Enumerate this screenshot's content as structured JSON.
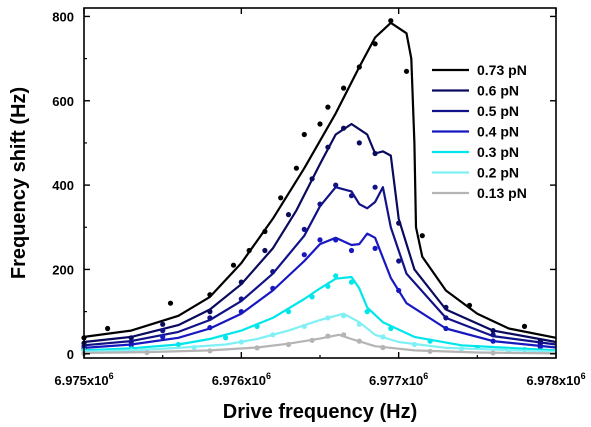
{
  "chart_data": {
    "type": "line",
    "title": "",
    "xlabel": "Drive frequency (Hz)",
    "ylabel": "Frequency shift (Hz)",
    "xlim": [
      6975000,
      6978000
    ],
    "ylim": [
      -10,
      820
    ],
    "x_ticks": [
      {
        "value": 6975000,
        "mantissa": "6.975x10",
        "exp": "6"
      },
      {
        "value": 6976000,
        "mantissa": "6.976x10",
        "exp": "6"
      },
      {
        "value": 6977000,
        "mantissa": "6.977x10",
        "exp": "6"
      },
      {
        "value": 6978000,
        "mantissa": "6.978x10",
        "exp": "6"
      }
    ],
    "y_ticks": [
      {
        "value": 0,
        "label": "0"
      },
      {
        "value": 200,
        "label": "200"
      },
      {
        "value": 400,
        "label": "400"
      },
      {
        "value": 600,
        "label": "600"
      },
      {
        "value": 800,
        "label": "800"
      }
    ],
    "legend_position": "top-right",
    "grid": false,
    "series": [
      {
        "name": "0.73 pN",
        "color": "#000000",
        "curve": [
          [
            6975000,
            40
          ],
          [
            6975300,
            55
          ],
          [
            6975600,
            90
          ],
          [
            6975800,
            135
          ],
          [
            6976000,
            215
          ],
          [
            6976200,
            320
          ],
          [
            6976400,
            440
          ],
          [
            6976600,
            570
          ],
          [
            6976750,
            680
          ],
          [
            6976850,
            750
          ],
          [
            6976950,
            785
          ],
          [
            6977050,
            760
          ],
          [
            6977080,
            700
          ],
          [
            6977100,
            500
          ],
          [
            6977110,
            300
          ],
          [
            6977150,
            230
          ],
          [
            6977300,
            150
          ],
          [
            6977500,
            95
          ],
          [
            6977700,
            60
          ],
          [
            6978000,
            38
          ]
        ],
        "points": [
          [
            6975000,
            38
          ],
          [
            6975150,
            60
          ],
          [
            6975550,
            120
          ],
          [
            6975800,
            140
          ],
          [
            6975950,
            210
          ],
          [
            6976050,
            245
          ],
          [
            6976150,
            290
          ],
          [
            6976250,
            370
          ],
          [
            6976350,
            440
          ],
          [
            6976400,
            520
          ],
          [
            6976500,
            545
          ],
          [
            6976550,
            585
          ],
          [
            6976650,
            630
          ],
          [
            6976750,
            680
          ],
          [
            6976850,
            735
          ],
          [
            6976950,
            790
          ],
          [
            6977050,
            670
          ],
          [
            6977150,
            280
          ],
          [
            6977450,
            115
          ],
          [
            6977800,
            65
          ]
        ]
      },
      {
        "name": "0.6 pN",
        "color": "#0a0a5e",
        "curve": [
          [
            6975000,
            28
          ],
          [
            6975300,
            40
          ],
          [
            6975600,
            68
          ],
          [
            6975800,
            105
          ],
          [
            6976000,
            165
          ],
          [
            6976200,
            250
          ],
          [
            6976350,
            340
          ],
          [
            6976500,
            450
          ],
          [
            6976600,
            520
          ],
          [
            6976700,
            545
          ],
          [
            6976800,
            520
          ],
          [
            6976850,
            475
          ],
          [
            6976900,
            480
          ],
          [
            6976950,
            470
          ],
          [
            6977000,
            320
          ],
          [
            6977100,
            200
          ],
          [
            6977300,
            105
          ],
          [
            6977600,
            55
          ],
          [
            6978000,
            28
          ]
        ],
        "points": [
          [
            6975000,
            25
          ],
          [
            6975300,
            38
          ],
          [
            6975500,
            70
          ],
          [
            6975800,
            100
          ],
          [
            6976000,
            170
          ],
          [
            6976150,
            245
          ],
          [
            6976300,
            330
          ],
          [
            6976450,
            415
          ],
          [
            6976550,
            490
          ],
          [
            6976650,
            535
          ],
          [
            6976750,
            500
          ],
          [
            6976850,
            475
          ],
          [
            6977000,
            310
          ],
          [
            6977300,
            110
          ],
          [
            6977600,
            55
          ],
          [
            6977900,
            30
          ]
        ]
      },
      {
        "name": "0.5 pN",
        "color": "#121288",
        "curve": [
          [
            6975000,
            20
          ],
          [
            6975300,
            30
          ],
          [
            6975600,
            52
          ],
          [
            6975800,
            80
          ],
          [
            6976000,
            125
          ],
          [
            6976200,
            190
          ],
          [
            6976400,
            280
          ],
          [
            6976500,
            350
          ],
          [
            6976600,
            395
          ],
          [
            6976700,
            385
          ],
          [
            6976750,
            355
          ],
          [
            6976800,
            345
          ],
          [
            6976850,
            360
          ],
          [
            6976900,
            395
          ],
          [
            6976950,
            300
          ],
          [
            6977050,
            190
          ],
          [
            6977300,
            85
          ],
          [
            6977600,
            42
          ],
          [
            6978000,
            22
          ]
        ],
        "points": [
          [
            6975000,
            18
          ],
          [
            6975300,
            28
          ],
          [
            6975500,
            55
          ],
          [
            6975800,
            85
          ],
          [
            6976000,
            130
          ],
          [
            6976200,
            195
          ],
          [
            6976400,
            295
          ],
          [
            6976500,
            355
          ],
          [
            6976600,
            400
          ],
          [
            6976700,
            375
          ],
          [
            6976850,
            395
          ],
          [
            6977000,
            220
          ],
          [
            6977300,
            85
          ],
          [
            6977600,
            45
          ],
          [
            6977900,
            24
          ]
        ]
      },
      {
        "name": "0.4 pN",
        "color": "#1818c0",
        "curve": [
          [
            6975000,
            14
          ],
          [
            6975300,
            22
          ],
          [
            6975600,
            38
          ],
          [
            6975800,
            60
          ],
          [
            6976000,
            95
          ],
          [
            6976200,
            150
          ],
          [
            6976400,
            220
          ],
          [
            6976500,
            260
          ],
          [
            6976600,
            275
          ],
          [
            6976700,
            258
          ],
          [
            6976750,
            260
          ],
          [
            6976800,
            285
          ],
          [
            6976850,
            275
          ],
          [
            6976950,
            180
          ],
          [
            6977050,
            120
          ],
          [
            6977300,
            60
          ],
          [
            6977600,
            30
          ],
          [
            6978000,
            15
          ]
        ],
        "points": [
          [
            6975000,
            12
          ],
          [
            6975300,
            20
          ],
          [
            6975500,
            40
          ],
          [
            6975800,
            62
          ],
          [
            6976000,
            100
          ],
          [
            6976200,
            155
          ],
          [
            6976400,
            235
          ],
          [
            6976500,
            270
          ],
          [
            6976600,
            270
          ],
          [
            6976700,
            245
          ],
          [
            6976850,
            250
          ],
          [
            6977000,
            150
          ],
          [
            6977300,
            60
          ],
          [
            6977600,
            30
          ],
          [
            6977900,
            16
          ]
        ]
      },
      {
        "name": "0.3 pN",
        "color": "#00e6ea",
        "curve": [
          [
            6975000,
            8
          ],
          [
            6975300,
            13
          ],
          [
            6975600,
            22
          ],
          [
            6975800,
            35
          ],
          [
            6976000,
            55
          ],
          [
            6976200,
            85
          ],
          [
            6976400,
            130
          ],
          [
            6976500,
            155
          ],
          [
            6976600,
            178
          ],
          [
            6976700,
            182
          ],
          [
            6976750,
            155
          ],
          [
            6976800,
            110
          ],
          [
            6976900,
            75
          ],
          [
            6977100,
            40
          ],
          [
            6977400,
            20
          ],
          [
            6978000,
            8
          ]
        ],
        "points": [
          [
            6975000,
            8
          ],
          [
            6975300,
            12
          ],
          [
            6975600,
            22
          ],
          [
            6975900,
            38
          ],
          [
            6976100,
            65
          ],
          [
            6976300,
            100
          ],
          [
            6976450,
            135
          ],
          [
            6976550,
            160
          ],
          [
            6976600,
            185
          ],
          [
            6976700,
            170
          ],
          [
            6976800,
            100
          ],
          [
            6976950,
            60
          ],
          [
            6977200,
            30
          ],
          [
            6977500,
            15
          ],
          [
            6977800,
            10
          ]
        ]
      },
      {
        "name": "0.2 pN",
        "color": "#80f0f5",
        "curve": [
          [
            6975000,
            5
          ],
          [
            6975300,
            8
          ],
          [
            6975600,
            14
          ],
          [
            6975900,
            22
          ],
          [
            6976100,
            35
          ],
          [
            6976300,
            55
          ],
          [
            6976500,
            80
          ],
          [
            6976650,
            95
          ],
          [
            6976750,
            75
          ],
          [
            6976850,
            45
          ],
          [
            6977000,
            28
          ],
          [
            6977300,
            14
          ],
          [
            6978000,
            5
          ]
        ],
        "points": [
          [
            6975000,
            4
          ],
          [
            6975300,
            7
          ],
          [
            6975700,
            15
          ],
          [
            6976000,
            28
          ],
          [
            6976200,
            45
          ],
          [
            6976400,
            65
          ],
          [
            6976550,
            85
          ],
          [
            6976650,
            90
          ],
          [
            6976750,
            70
          ],
          [
            6976900,
            40
          ],
          [
            6977100,
            22
          ],
          [
            6977400,
            12
          ],
          [
            6977700,
            7
          ]
        ]
      },
      {
        "name": "0.13 pN",
        "color": "#b4b4b4",
        "curve": [
          [
            6975000,
            2
          ],
          [
            6975400,
            4
          ],
          [
            6975800,
            8
          ],
          [
            6976100,
            15
          ],
          [
            6976300,
            24
          ],
          [
            6976500,
            36
          ],
          [
            6976620,
            45
          ],
          [
            6976700,
            35
          ],
          [
            6976850,
            18
          ],
          [
            6977100,
            8
          ],
          [
            6977500,
            3
          ],
          [
            6978000,
            1
          ]
        ],
        "points": [
          [
            6975000,
            1
          ],
          [
            6975400,
            3
          ],
          [
            6975800,
            7
          ],
          [
            6976100,
            14
          ],
          [
            6976300,
            22
          ],
          [
            6976450,
            32
          ],
          [
            6976550,
            42
          ],
          [
            6976650,
            45
          ],
          [
            6976750,
            30
          ],
          [
            6976900,
            15
          ],
          [
            6977200,
            6
          ],
          [
            6977600,
            2
          ]
        ]
      }
    ]
  }
}
